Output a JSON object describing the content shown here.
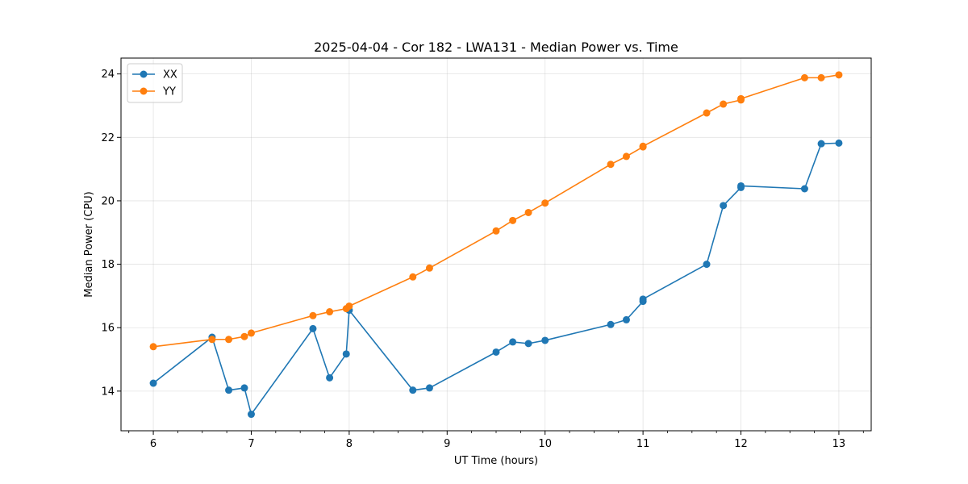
{
  "chart_data": {
    "type": "line",
    "title": "2025-04-04 - Cor 182 - LWA131 - Median Power vs. Time",
    "xlabel": "UT Time (hours)",
    "ylabel": "Median Power (CPU)",
    "xlim": [
      5.67,
      13.33
    ],
    "ylim": [
      12.75,
      24.5
    ],
    "xticks": [
      6,
      7,
      8,
      9,
      10,
      11,
      12,
      13
    ],
    "yticks": [
      14,
      16,
      18,
      20,
      22,
      24
    ],
    "grid": true,
    "legend_position": "top-left",
    "series": [
      {
        "name": "XX",
        "color": "#1f77b4",
        "x": [
          6.0,
          6.6,
          6.77,
          6.93,
          7.0,
          7.63,
          7.8,
          7.97,
          8.0,
          8.65,
          8.82,
          9.5,
          9.67,
          9.83,
          10.0,
          10.67,
          10.83,
          11.0,
          11.0,
          11.65,
          11.82,
          12.0,
          12.0,
          12.65,
          12.82,
          13.0
        ],
        "y": [
          14.25,
          15.7,
          14.03,
          14.1,
          13.27,
          15.97,
          14.42,
          15.17,
          16.55,
          14.03,
          14.1,
          15.23,
          15.55,
          15.5,
          15.6,
          16.1,
          16.25,
          16.83,
          16.9,
          18.0,
          19.85,
          20.42,
          20.47,
          20.38,
          21.8,
          21.82
        ]
      },
      {
        "name": "YY",
        "color": "#ff7f0e",
        "x": [
          6.0,
          6.6,
          6.77,
          6.93,
          7.0,
          7.63,
          7.8,
          7.97,
          8.0,
          8.65,
          8.82,
          9.5,
          9.67,
          9.83,
          10.0,
          10.67,
          10.83,
          11.0,
          11.0,
          11.65,
          11.82,
          12.0,
          12.0,
          12.65,
          12.82,
          13.0
        ],
        "y": [
          15.4,
          15.63,
          15.63,
          15.72,
          15.83,
          16.38,
          16.5,
          16.6,
          16.68,
          17.6,
          17.88,
          19.05,
          19.38,
          19.63,
          19.93,
          21.15,
          21.4,
          21.7,
          21.72,
          22.77,
          23.05,
          23.18,
          23.22,
          23.88,
          23.88,
          23.97
        ]
      }
    ]
  }
}
